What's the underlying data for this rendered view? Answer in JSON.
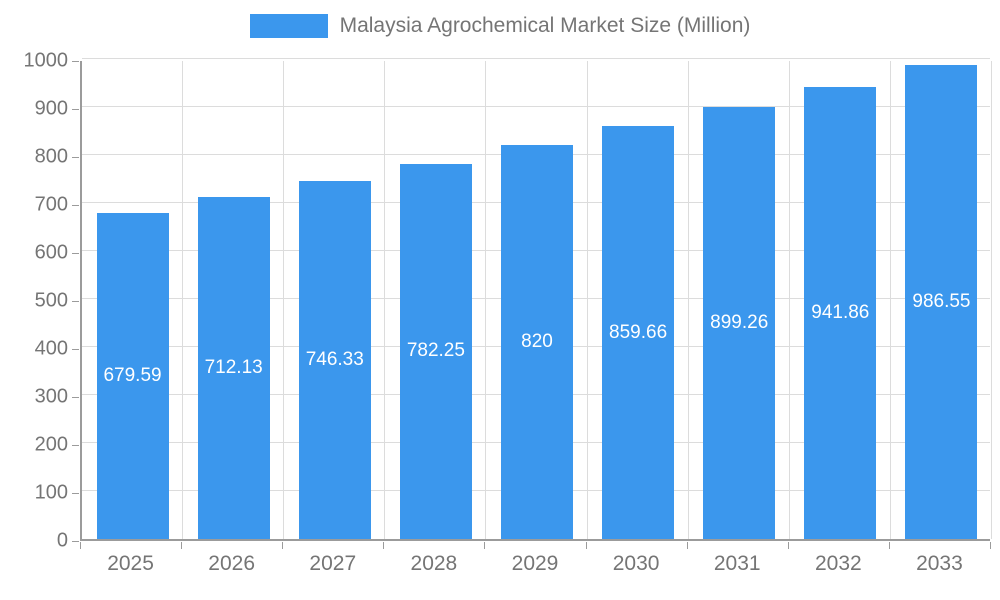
{
  "chart_data": {
    "type": "bar",
    "title": "Malaysia Agrochemical Market Size (Million)",
    "categories": [
      "2025",
      "2026",
      "2027",
      "2028",
      "2029",
      "2030",
      "2031",
      "2032",
      "2033"
    ],
    "values": [
      679.59,
      712.13,
      746.33,
      782.25,
      820,
      859.66,
      899.26,
      941.86,
      986.55
    ],
    "value_labels": [
      "679.59",
      "712.13",
      "746.33",
      "782.25",
      "820",
      "859.66",
      "899.26",
      "941.86",
      "986.55"
    ],
    "xlabel": "",
    "ylabel": "",
    "ylim": [
      0,
      1000
    ],
    "ytick_step": 100,
    "grid": true,
    "legend_position": "top",
    "bar_color": "#3b97ed",
    "bar_label_color": "#ffffff",
    "axis_text_color": "#757575",
    "gridline_color": "#dcdcdc",
    "axis_line_color": "#9b9b9b"
  }
}
